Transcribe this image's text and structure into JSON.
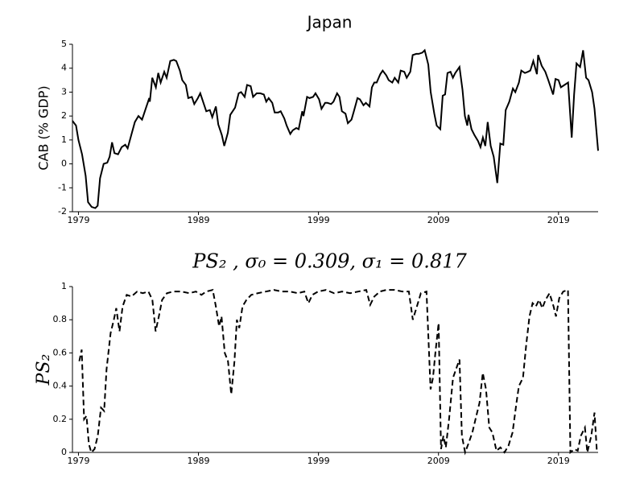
{
  "chart_data": [
    {
      "type": "line",
      "title": "Japan",
      "y_label": "CAB (% GDP)",
      "xlim": [
        1978.5,
        2022.3
      ],
      "xticks": [
        1979,
        1989,
        1999,
        2009,
        2019
      ],
      "ylim": [
        -2,
        5
      ],
      "yticks": [
        -2,
        -1,
        0,
        1,
        2,
        3,
        4,
        5
      ],
      "x": [
        1978.5,
        1978.8,
        1979.0,
        1979.3,
        1979.6,
        1979.8,
        1980.1,
        1980.4,
        1980.6,
        1980.8,
        1981.1,
        1981.4,
        1981.6,
        1981.8,
        1982.0,
        1982.3,
        1982.6,
        1982.9,
        1983.1,
        1983.4,
        1983.7,
        1984.0,
        1984.3,
        1984.6,
        1984.9,
        1984.95,
        1985.15,
        1985.45,
        1985.65,
        1985.85,
        1986.15,
        1986.35,
        1986.65,
        1986.95,
        1987.15,
        1987.45,
        1987.65,
        1987.95,
        1988.15,
        1988.45,
        1988.65,
        1988.95,
        1989.15,
        1989.45,
        1989.65,
        1989.95,
        1990.15,
        1990.45,
        1990.65,
        1990.95,
        1991.15,
        1991.45,
        1991.65,
        1991.85,
        1992.05,
        1992.35,
        1992.55,
        1992.85,
        1993.05,
        1993.35,
        1993.55,
        1993.85,
        1994.15,
        1994.45,
        1994.65,
        1994.85,
        1995.15,
        1995.35,
        1995.65,
        1995.85,
        1996.15,
        1996.35,
        1996.65,
        1996.85,
        1997.15,
        1997.35,
        1997.65,
        1997.75,
        1998.05,
        1998.25,
        1998.55,
        1998.75,
        1999.05,
        1999.25,
        1999.55,
        1999.75,
        2000.05,
        2000.25,
        2000.55,
        2000.75,
        2000.95,
        2001.25,
        2001.45,
        2001.75,
        2001.95,
        2002.25,
        2002.45,
        2002.75,
        2002.95,
        2003.25,
        2003.45,
        2003.65,
        2003.85,
        2004.15,
        2004.35,
        2004.65,
        2004.85,
        2005.15,
        2005.35,
        2005.65,
        2005.85,
        2006.15,
        2006.35,
        2006.65,
        2006.85,
        2007.15,
        2007.35,
        2007.65,
        2007.85,
        2008.15,
        2008.35,
        2008.65,
        2008.85,
        2009.15,
        2009.35,
        2009.55,
        2009.75,
        2010.0,
        2010.2,
        2010.4,
        2010.75,
        2011.0,
        2011.2,
        2011.4,
        2011.5,
        2011.75,
        2012.0,
        2012.3,
        2012.5,
        2012.7,
        2012.9,
        2013.1,
        2013.35,
        2013.6,
        2013.9,
        2014.15,
        2014.4,
        2014.6,
        2014.9,
        2015.2,
        2015.4,
        2015.7,
        2015.9,
        2016.2,
        2016.45,
        2016.65,
        2016.9,
        2017.2,
        2017.3,
        2017.6,
        2017.9,
        2018.15,
        2018.55,
        2018.75,
        2019.0,
        2019.2,
        2019.5,
        2019.8,
        2020.1,
        2020.3,
        2020.5,
        2020.8,
        2021.05,
        2021.3,
        2021.5,
        2021.8,
        2022.0,
        2022.3
      ],
      "series": [
        {
          "color": "#000000",
          "linestyle": "solid",
          "values": [
            1.8,
            1.6,
            1.0,
            0.4,
            -0.5,
            -1.6,
            -1.8,
            -1.85,
            -1.75,
            -0.6,
            0.0,
            0.05,
            0.3,
            0.9,
            0.45,
            0.4,
            0.7,
            0.8,
            0.65,
            1.2,
            1.75,
            2.0,
            1.85,
            2.3,
            2.75,
            2.6,
            3.6,
            3.2,
            3.8,
            3.4,
            3.85,
            3.6,
            4.3,
            4.35,
            4.3,
            3.9,
            3.5,
            3.3,
            2.75,
            2.8,
            2.5,
            2.75,
            2.95,
            2.5,
            2.2,
            2.25,
            1.95,
            2.4,
            1.65,
            1.2,
            0.75,
            1.3,
            2.05,
            2.2,
            2.35,
            2.95,
            3.0,
            2.8,
            3.3,
            3.25,
            2.8,
            2.95,
            2.95,
            2.9,
            2.6,
            2.75,
            2.55,
            2.15,
            2.15,
            2.2,
            1.9,
            1.6,
            1.25,
            1.4,
            1.5,
            1.45,
            2.2,
            2.0,
            2.8,
            2.75,
            2.8,
            2.95,
            2.7,
            2.3,
            2.55,
            2.55,
            2.5,
            2.6,
            2.95,
            2.8,
            2.2,
            2.1,
            1.7,
            1.85,
            2.2,
            2.75,
            2.7,
            2.45,
            2.55,
            2.4,
            3.2,
            3.4,
            3.4,
            3.75,
            3.9,
            3.7,
            3.5,
            3.4,
            3.6,
            3.4,
            3.9,
            3.85,
            3.6,
            3.85,
            4.55,
            4.6,
            4.6,
            4.65,
            4.75,
            4.15,
            3.0,
            2.1,
            1.6,
            1.45,
            2.85,
            2.9,
            3.8,
            3.85,
            3.6,
            3.8,
            4.05,
            3.1,
            2.0,
            1.6,
            2.05,
            1.45,
            1.2,
            0.95,
            0.7,
            1.1,
            0.75,
            1.75,
            0.75,
            0.3,
            -0.8,
            0.85,
            0.8,
            2.25,
            2.6,
            3.15,
            3.0,
            3.4,
            3.9,
            3.8,
            3.85,
            3.9,
            4.3,
            3.75,
            4.55,
            4.1,
            3.85,
            3.5,
            2.9,
            3.55,
            3.5,
            3.2,
            3.3,
            3.4,
            1.1,
            2.9,
            4.2,
            4.05,
            4.75,
            3.6,
            3.5,
            3.0,
            2.3,
            0.55
          ]
        }
      ]
    },
    {
      "type": "line",
      "title": "PS₂ , σ₀ = 0.309, σ₁ = 0.817",
      "y_label": "PS₂",
      "xlim": [
        1978.5,
        2022.3
      ],
      "xticks": [
        1979,
        1989,
        1999,
        2009,
        2019
      ],
      "ylim": [
        0,
        1
      ],
      "yticks": [
        0,
        0.2,
        0.4,
        0.6,
        0.8,
        1
      ],
      "x": [
        1979.07,
        1979.27,
        1979.47,
        1979.67,
        1979.87,
        1980.07,
        1980.34,
        1980.61,
        1980.88,
        1981.14,
        1981.34,
        1981.68,
        1981.95,
        1982.15,
        1982.42,
        1982.68,
        1983.02,
        1983.42,
        1983.89,
        1984.36,
        1984.83,
        1985.16,
        1985.43,
        1985.7,
        1985.97,
        1986.37,
        1986.9,
        1987.57,
        1988.24,
        1988.78,
        1989.25,
        1989.65,
        1990.19,
        1990.45,
        1990.72,
        1990.92,
        1991.19,
        1991.46,
        1991.73,
        1992.0,
        1992.2,
        1992.4,
        1992.67,
        1993.0,
        1993.4,
        1993.94,
        1994.61,
        1995.28,
        1995.95,
        1996.62,
        1997.29,
        1997.82,
        1998.16,
        1998.49,
        1998.96,
        1999.63,
        2000.3,
        2000.97,
        2001.64,
        2002.31,
        2002.98,
        2003.31,
        2003.65,
        2004.12,
        2004.65,
        2005.32,
        2005.99,
        2006.53,
        2006.86,
        2007.2,
        2007.53,
        2008.0,
        2008.34,
        2008.54,
        2008.74,
        2009.01,
        2009.21,
        2009.41,
        2009.61,
        2009.88,
        2010.21,
        2010.55,
        2010.75,
        2010.95,
        2011.22,
        2011.48,
        2011.82,
        2012.15,
        2012.42,
        2012.69,
        2012.96,
        2013.23,
        2013.49,
        2013.83,
        2014.16,
        2014.5,
        2014.83,
        2015.17,
        2015.5,
        2015.7,
        2016.04,
        2016.31,
        2016.58,
        2016.84,
        2017.11,
        2017.38,
        2017.65,
        2017.92,
        2018.25,
        2018.59,
        2018.79,
        2019.06,
        2019.39,
        2019.79,
        2019.99,
        2020.33,
        2020.6,
        2020.86,
        2021.2,
        2021.4,
        2021.73,
        2022.0,
        2022.2
      ],
      "series": [
        {
          "color": "#000000",
          "linestyle": "dashed",
          "values": [
            0.55,
            0.62,
            0.2,
            0.22,
            0.05,
            0.0,
            0.02,
            0.1,
            0.27,
            0.25,
            0.5,
            0.72,
            0.8,
            0.87,
            0.73,
            0.88,
            0.95,
            0.94,
            0.97,
            0.96,
            0.97,
            0.92,
            0.73,
            0.82,
            0.92,
            0.96,
            0.97,
            0.97,
            0.96,
            0.97,
            0.95,
            0.97,
            0.98,
            0.88,
            0.76,
            0.82,
            0.6,
            0.55,
            0.35,
            0.55,
            0.8,
            0.75,
            0.88,
            0.92,
            0.95,
            0.96,
            0.97,
            0.98,
            0.97,
            0.97,
            0.96,
            0.97,
            0.9,
            0.95,
            0.97,
            0.98,
            0.96,
            0.97,
            0.96,
            0.97,
            0.98,
            0.89,
            0.94,
            0.97,
            0.98,
            0.98,
            0.97,
            0.97,
            0.8,
            0.88,
            0.96,
            0.97,
            0.38,
            0.45,
            0.6,
            0.78,
            0.02,
            0.1,
            0.03,
            0.2,
            0.45,
            0.52,
            0.56,
            0.1,
            0.0,
            0.05,
            0.12,
            0.22,
            0.3,
            0.48,
            0.38,
            0.15,
            0.12,
            0.01,
            0.03,
            0.0,
            0.04,
            0.12,
            0.3,
            0.4,
            0.45,
            0.65,
            0.82,
            0.9,
            0.88,
            0.92,
            0.87,
            0.92,
            0.96,
            0.88,
            0.82,
            0.93,
            0.97,
            0.98,
            0.0,
            0.02,
            0.01,
            0.1,
            0.15,
            0.0,
            0.1,
            0.24,
            0.0
          ]
        }
      ]
    }
  ]
}
